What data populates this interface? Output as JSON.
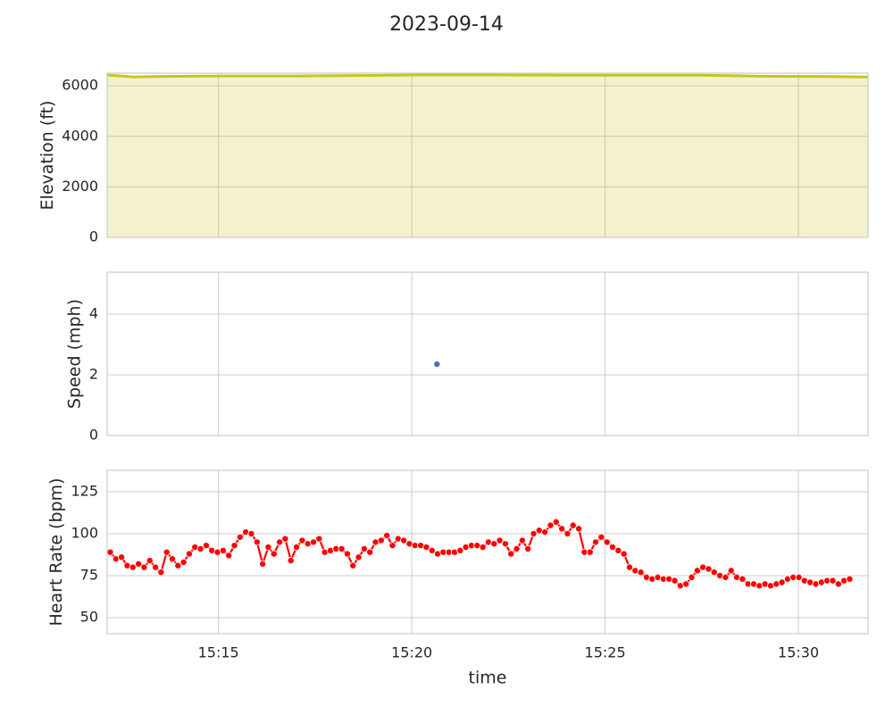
{
  "title": "2023-09-14",
  "chart_data": [
    {
      "type": "area",
      "ylabel": "Elevation (ft)",
      "color": "#c9c41c",
      "grid": true,
      "xlim": [
        912.12,
        931.8
      ],
      "xticks": [
        915,
        920,
        925,
        930
      ],
      "ylim": [
        0,
        6500
      ],
      "yticks": [
        0,
        2000,
        4000,
        6000
      ],
      "x": [
        912.12,
        912.8,
        913.5,
        915,
        917,
        919,
        920,
        922,
        924,
        926,
        927.5,
        929,
        930.5,
        931.8
      ],
      "values": [
        6430,
        6350,
        6370,
        6390,
        6390,
        6410,
        6430,
        6430,
        6420,
        6420,
        6420,
        6380,
        6370,
        6350
      ]
    },
    {
      "type": "scatter",
      "ylabel": "Speed (mph)",
      "color": "#4c72b0",
      "grid": true,
      "xlim": [
        912.12,
        931.8
      ],
      "xticks": [
        915,
        920,
        925,
        930
      ],
      "ylim": [
        0,
        5.38
      ],
      "yticks": [
        0,
        2,
        4
      ],
      "x": [
        920.65
      ],
      "values": [
        2.35
      ]
    },
    {
      "type": "line",
      "ylabel": "Heart Rate (bpm)",
      "xlabel": "time",
      "color": "#ff0000",
      "markers": true,
      "grid": true,
      "xlim": [
        912.12,
        931.8
      ],
      "xticks": [
        {
          "value": 915,
          "label": "15:15"
        },
        {
          "value": 920,
          "label": "15:20"
        },
        {
          "value": 925,
          "label": "15:25"
        },
        {
          "value": 930,
          "label": "15:30"
        }
      ],
      "ylim": [
        40.4,
        137.8
      ],
      "yticks": [
        50,
        75,
        100,
        125
      ],
      "x": [
        912.2,
        912.346,
        912.492,
        912.638,
        912.784,
        912.93,
        913.076,
        913.222,
        913.368,
        913.514,
        913.66,
        913.806,
        913.952,
        914.098,
        914.244,
        914.39,
        914.536,
        914.682,
        914.828,
        914.974,
        915.12,
        915.266,
        915.412,
        915.558,
        915.704,
        915.85,
        915.996,
        916.142,
        916.288,
        916.434,
        916.58,
        916.726,
        916.872,
        917.018,
        917.164,
        917.31,
        917.456,
        917.602,
        917.748,
        917.894,
        918.04,
        918.186,
        918.332,
        918.478,
        918.624,
        918.77,
        918.916,
        919.062,
        919.208,
        919.354,
        919.5,
        919.646,
        919.792,
        919.938,
        920.084,
        920.23,
        920.376,
        920.522,
        920.668,
        920.814,
        920.96,
        921.106,
        921.252,
        921.398,
        921.544,
        921.69,
        921.836,
        921.982,
        922.128,
        922.274,
        922.42,
        922.566,
        922.712,
        922.858,
        923.004,
        923.15,
        923.296,
        923.442,
        923.588,
        923.734,
        923.88,
        924.026,
        924.172,
        924.318,
        924.464,
        924.61,
        924.756,
        924.902,
        925.048,
        925.194,
        925.34,
        925.486,
        925.632,
        925.778,
        925.924,
        926.07,
        926.216,
        926.362,
        926.508,
        926.654,
        926.8,
        926.946,
        927.092,
        927.238,
        927.384,
        927.53,
        927.676,
        927.822,
        927.968,
        928.114,
        928.26,
        928.406,
        928.552,
        928.698,
        928.844,
        928.99,
        929.136,
        929.282,
        929.428,
        929.574,
        929.72,
        929.866,
        930.012,
        930.158,
        930.304,
        930.45,
        930.596,
        930.742,
        930.888,
        931.034,
        931.18,
        931.326
      ],
      "values": [
        89,
        85,
        86,
        81,
        80,
        82,
        80,
        84,
        80,
        77,
        89,
        85,
        81,
        83,
        88,
        92,
        91,
        93,
        90,
        89,
        90,
        87,
        93,
        98,
        101,
        100,
        95,
        82,
        92,
        88,
        95,
        97,
        84,
        92,
        96,
        94,
        95,
        97,
        89,
        90,
        91,
        91,
        88,
        81,
        86,
        91,
        89,
        95,
        96,
        99,
        93,
        97,
        96,
        94,
        93,
        93,
        92,
        90,
        88,
        89,
        89,
        89,
        90,
        92,
        93,
        93,
        92,
        95,
        94,
        96,
        94,
        88,
        91,
        96,
        91,
        100,
        102,
        101,
        105,
        107,
        103,
        100,
        105,
        103,
        89,
        89,
        95,
        98,
        95,
        92,
        90,
        88,
        80,
        78,
        77,
        74,
        73,
        74,
        73,
        73,
        72,
        69,
        70,
        74,
        78,
        80,
        79,
        77,
        75,
        74,
        78,
        74,
        73,
        70,
        70,
        69,
        70,
        69,
        70,
        71,
        73,
        74,
        74,
        72,
        71,
        70,
        71,
        72,
        72,
        70,
        72,
        73
      ]
    }
  ]
}
